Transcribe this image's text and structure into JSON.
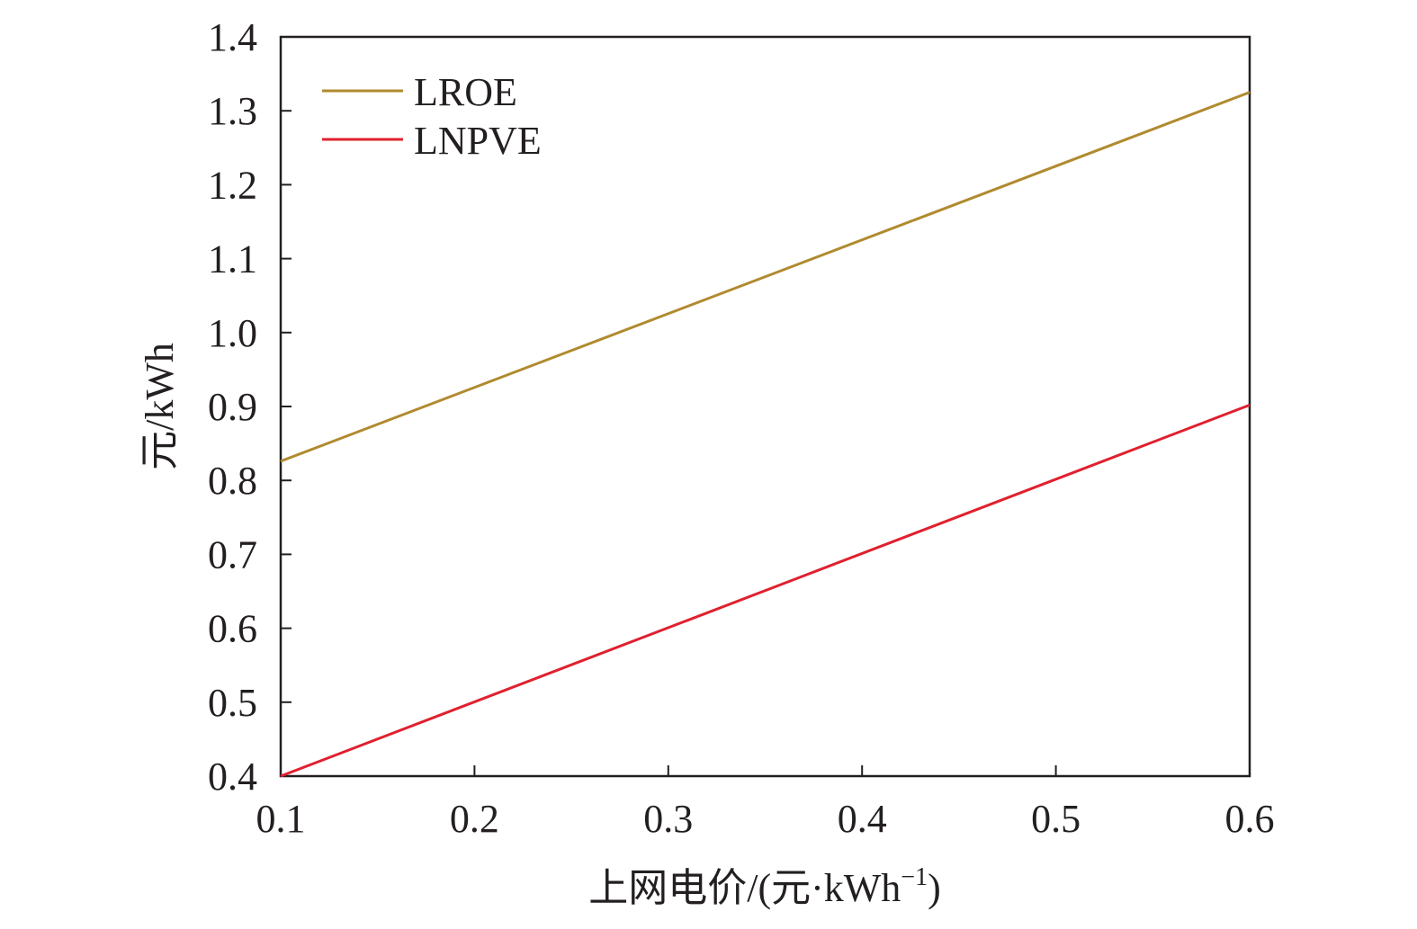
{
  "chart_data": {
    "type": "line",
    "title": "",
    "xlabel": "上网电价/(元·kWh",
    "xlabel_superscript": "−1",
    "xlabel_close": ")",
    "ylabel": "元/kWh",
    "xlim": [
      0.1,
      0.6
    ],
    "ylim": [
      0.4,
      1.4
    ],
    "x_ticks": [
      "0.1",
      "0.2",
      "0.3",
      "0.4",
      "0.5",
      "0.6"
    ],
    "y_ticks": [
      "0.4",
      "0.5",
      "0.6",
      "0.7",
      "0.8",
      "0.9",
      "1.0",
      "1.1",
      "1.2",
      "1.3",
      "1.4"
    ],
    "grid": false,
    "legend_position": "top-left",
    "series": [
      {
        "name": "LROE",
        "color": "#b08a2e",
        "x": [
          0.1,
          0.6
        ],
        "y": [
          0.826,
          1.325
        ]
      },
      {
        "name": "LNPVE",
        "color": "#e0202e",
        "x": [
          0.1,
          0.6
        ],
        "y": [
          0.4,
          0.902
        ]
      }
    ]
  }
}
